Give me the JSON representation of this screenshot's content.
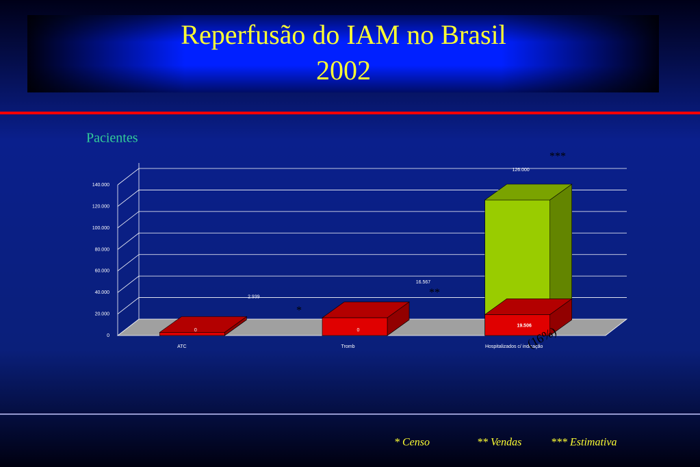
{
  "chart_data": {
    "type": "bar3d",
    "title": "Reperfusão do IAM no Brasil",
    "subtitle": "2002",
    "y_label": "Pacientes",
    "categories": [
      "ATC",
      "Tromb",
      "Hospitalizados c/ indicação"
    ],
    "series": [
      {
        "color": "#99cc00",
        "values": [
          0,
          0,
          126000
        ],
        "value_labels": [
          "0",
          "0",
          "126.000"
        ]
      },
      {
        "color": "#e00000",
        "values": [
          2939,
          16567,
          19506
        ],
        "value_labels": [
          "2.939",
          "16.567",
          "19.506"
        ]
      }
    ],
    "ylim": [
      0,
      140000
    ],
    "yticks": [
      {
        "value": 0,
        "label": "0"
      },
      {
        "value": 20000,
        "label": "20.000"
      },
      {
        "value": 40000,
        "label": "40.000"
      },
      {
        "value": 60000,
        "label": "60.000"
      },
      {
        "value": 80000,
        "label": "80.000"
      },
      {
        "value": 100000,
        "label": "100.000"
      },
      {
        "value": 120000,
        "label": "120.000"
      },
      {
        "value": 140000,
        "label": "140.000"
      }
    ],
    "grid": true,
    "annotations": [
      "*",
      "**",
      "***",
      "(16%)"
    ],
    "footnotes": [
      "* Censo",
      "** Vendas",
      "*** Estimativa"
    ]
  }
}
